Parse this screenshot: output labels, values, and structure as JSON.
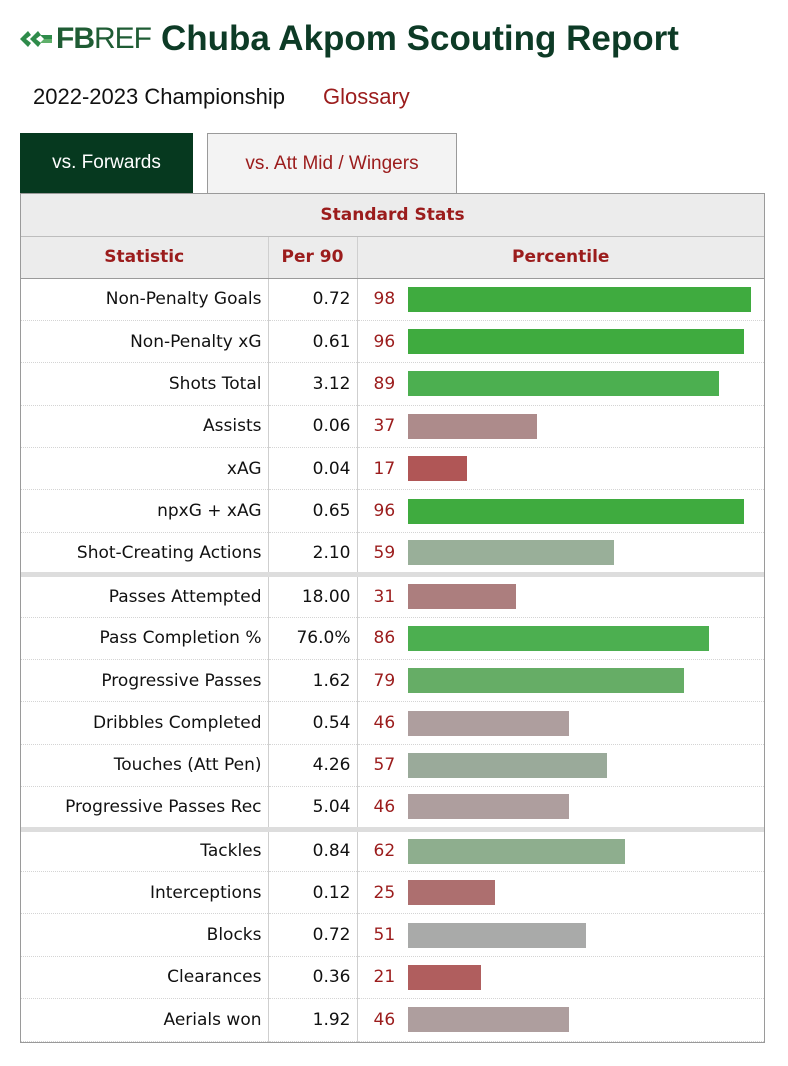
{
  "header": {
    "logo_text_bold": "FB",
    "logo_text_light": "REF",
    "logo_icon": "fbref-leaf-logo",
    "title": "Chuba Akpom Scouting Report"
  },
  "subheader": {
    "season": "2022-2023 Championship",
    "glossary_link": "Glossary"
  },
  "tabs": [
    {
      "label": "vs. Forwards",
      "active": true
    },
    {
      "label": "vs. Att Mid / Wingers",
      "active": false
    }
  ],
  "table": {
    "caption": "Standard Stats",
    "columns": [
      "Statistic",
      "Per 90",
      "Percentile"
    ],
    "groups": [
      [
        {
          "statistic": "Non-Penalty Goals",
          "per90": "0.72",
          "percentile": 98,
          "color": "#3fab3f"
        },
        {
          "statistic": "Non-Penalty xG",
          "per90": "0.61",
          "percentile": 96,
          "color": "#3fab3f"
        },
        {
          "statistic": "Shots Total",
          "per90": "3.12",
          "percentile": 89,
          "color": "#4caf50"
        },
        {
          "statistic": "Assists",
          "per90": "0.06",
          "percentile": 37,
          "color": "#ad8b8b"
        },
        {
          "statistic": "xAG",
          "per90": "0.04",
          "percentile": 17,
          "color": "#b05656"
        },
        {
          "statistic": "npxG + xAG",
          "per90": "0.65",
          "percentile": 96,
          "color": "#3fab3f"
        },
        {
          "statistic": "Shot-Creating Actions",
          "per90": "2.10",
          "percentile": 59,
          "color": "#99af99"
        }
      ],
      [
        {
          "statistic": "Passes Attempted",
          "per90": "18.00",
          "percentile": 31,
          "color": "#ac7e7e"
        },
        {
          "statistic": "Pass Completion %",
          "per90": "76.0%",
          "percentile": 86,
          "color": "#4caf50"
        },
        {
          "statistic": "Progressive Passes",
          "per90": "1.62",
          "percentile": 79,
          "color": "#66ad66"
        },
        {
          "statistic": "Dribbles Completed",
          "per90": "0.54",
          "percentile": 46,
          "color": "#ae9e9e"
        },
        {
          "statistic": "Touches (Att Pen)",
          "per90": "4.26",
          "percentile": 57,
          "color": "#9aaa9a"
        },
        {
          "statistic": "Progressive Passes Rec",
          "per90": "5.04",
          "percentile": 46,
          "color": "#ae9e9e"
        }
      ],
      [
        {
          "statistic": "Tackles",
          "per90": "0.84",
          "percentile": 62,
          "color": "#8eae8e"
        },
        {
          "statistic": "Interceptions",
          "per90": "0.12",
          "percentile": 25,
          "color": "#ad6f6f"
        },
        {
          "statistic": "Blocks",
          "per90": "0.72",
          "percentile": 51,
          "color": "#a9aaa9"
        },
        {
          "statistic": "Clearances",
          "per90": "0.36",
          "percentile": 21,
          "color": "#b05e5e"
        },
        {
          "statistic": "Aerials won",
          "per90": "1.92",
          "percentile": 46,
          "color": "#ae9e9e"
        }
      ]
    ]
  }
}
